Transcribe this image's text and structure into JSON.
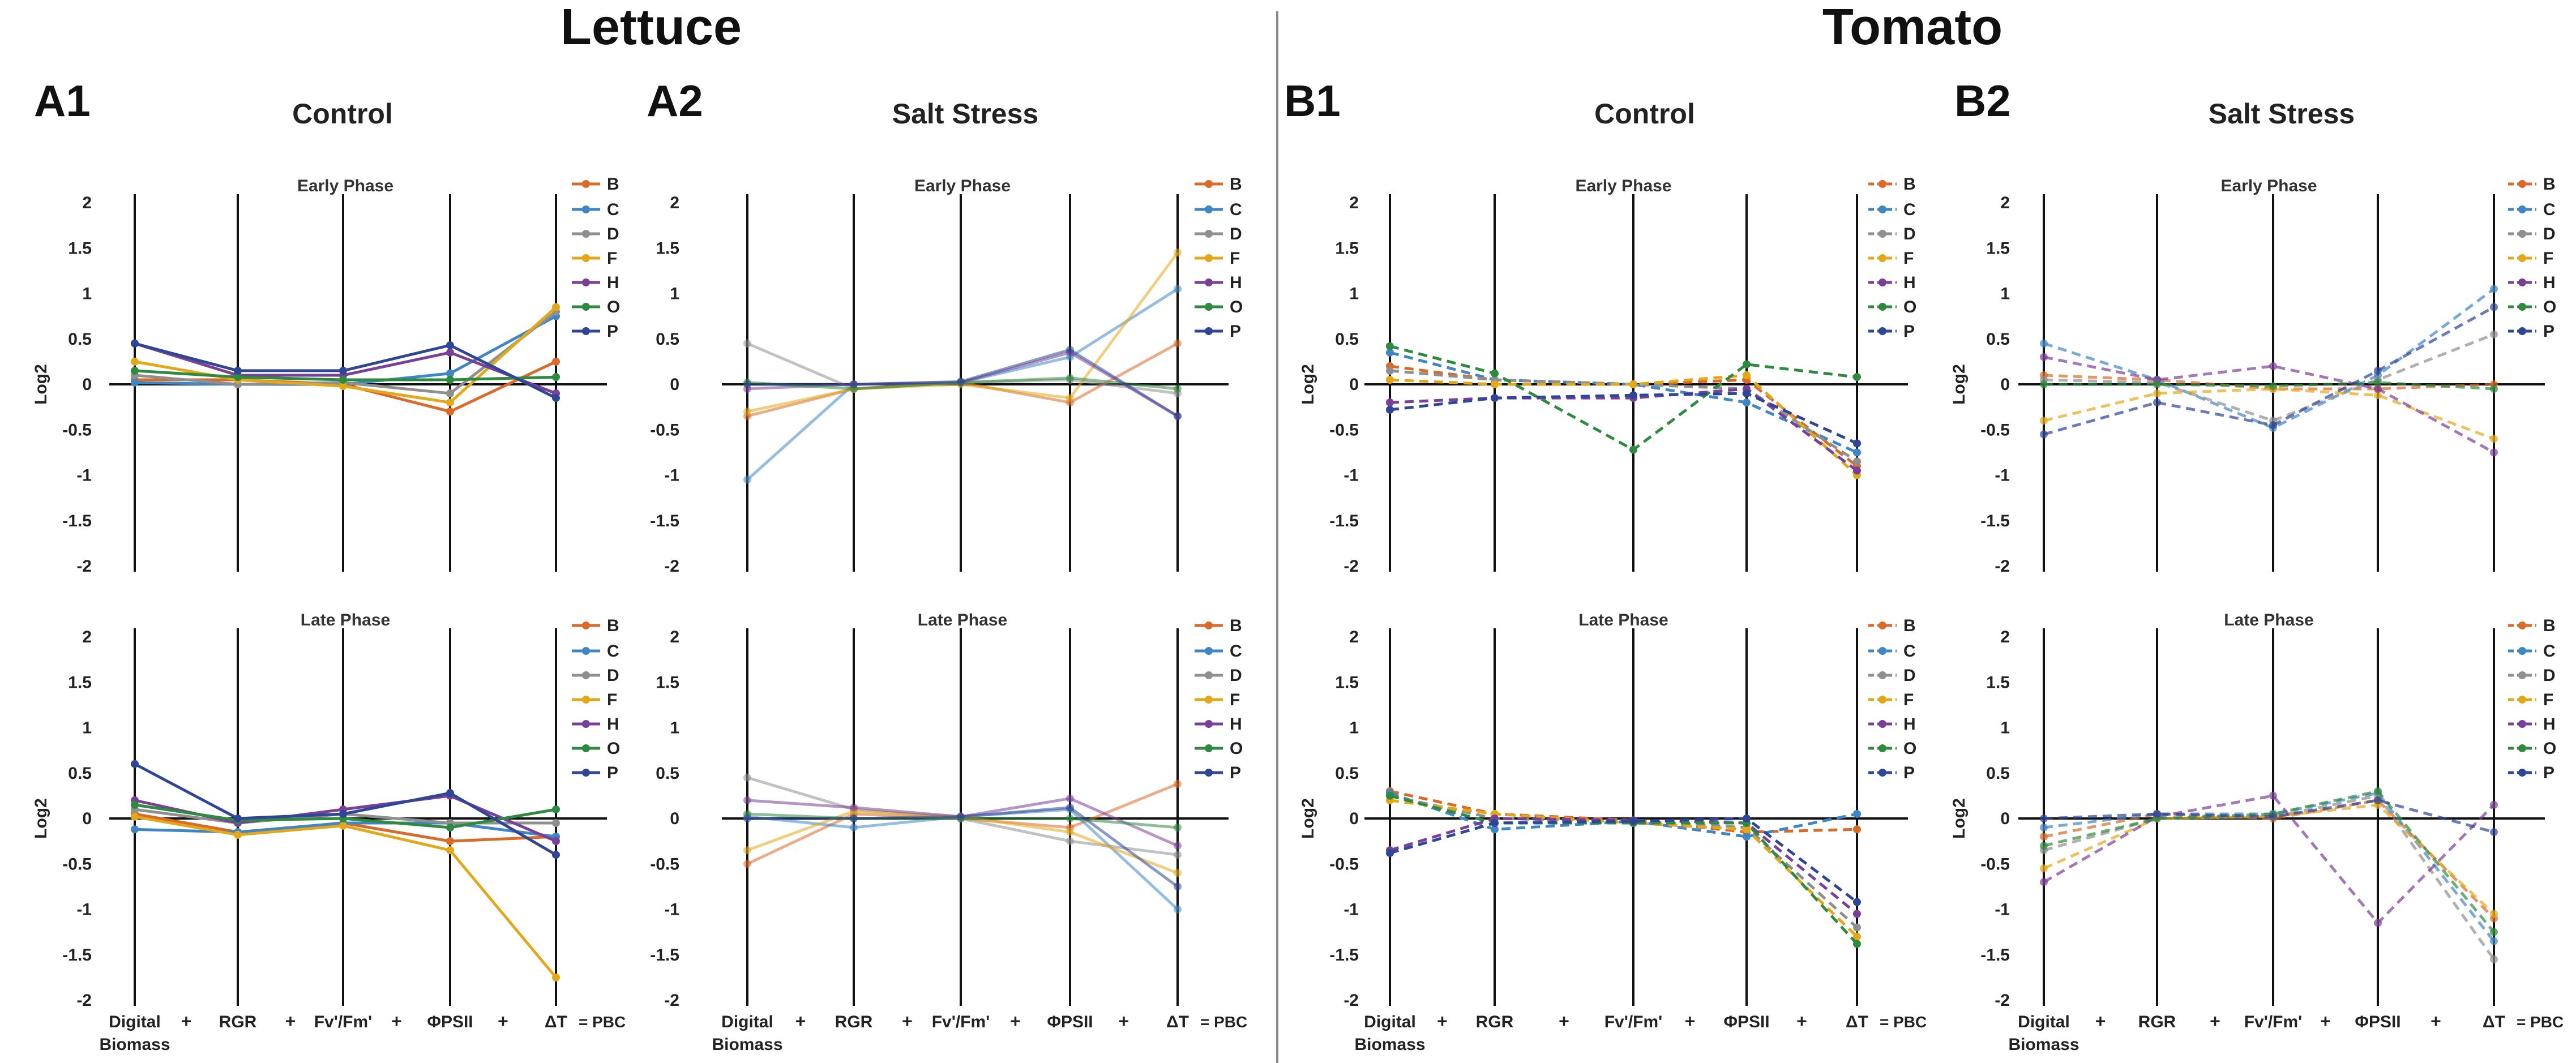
{
  "figure": {
    "crop_names": [
      "Lettuce",
      "Tomato"
    ],
    "pbc_label": "= PBC",
    "plus_symbol": "+",
    "y_axis_label": "Log2"
  },
  "colors": {
    "B": "#D96A27",
    "C": "#3E86C6",
    "D": "#8F8F8F",
    "F": "#E3A81A",
    "H": "#7A3F97",
    "O": "#2D8A3E",
    "P": "#2F4596"
  },
  "chart_data": [
    {
      "type": "line",
      "panel": "A1",
      "crop": "Lettuce",
      "title": "Control",
      "subplot_title": "Early Phase",
      "line_style": "solid",
      "marker_opacity": 1.0,
      "ylabel": "Log2",
      "categories": [
        "Digital Biomass",
        "RGR",
        "Fv'/Fm'",
        "ΦPSII",
        "ΔT"
      ],
      "ylim": [
        -2,
        2
      ],
      "yticks": [
        2,
        1.5,
        1,
        0.5,
        0,
        -0.5,
        -1,
        -1.5,
        -2
      ],
      "series": [
        {
          "name": "B",
          "values": [
            0.05,
            0.05,
            0.0,
            -0.3,
            0.25
          ]
        },
        {
          "name": "C",
          "values": [
            0.02,
            0.0,
            0.0,
            0.12,
            0.75
          ]
        },
        {
          "name": "D",
          "values": [
            0.1,
            0.0,
            0.02,
            -0.1,
            0.8
          ]
        },
        {
          "name": "F",
          "values": [
            0.25,
            0.05,
            -0.02,
            -0.2,
            0.85
          ]
        },
        {
          "name": "H",
          "values": [
            0.45,
            0.1,
            0.1,
            0.35,
            -0.1
          ]
        },
        {
          "name": "O",
          "values": [
            0.15,
            0.08,
            0.05,
            0.05,
            0.08
          ]
        },
        {
          "name": "P",
          "values": [
            0.45,
            0.15,
            0.15,
            0.43,
            -0.15
          ]
        }
      ]
    },
    {
      "type": "line",
      "panel": "A1",
      "crop": "Lettuce",
      "title": "Control",
      "subplot_title": "Late Phase",
      "line_style": "solid",
      "marker_opacity": 1.0,
      "ylabel": "Log2",
      "categories": [
        "Digital Biomass",
        "RGR",
        "Fv'/Fm'",
        "ΦPSII",
        "ΔT"
      ],
      "ylim": [
        -2,
        2
      ],
      "yticks": [
        2,
        1.5,
        1,
        0.5,
        0,
        -0.5,
        -1,
        -1.5,
        -2
      ],
      "series": [
        {
          "name": "B",
          "values": [
            0.05,
            -0.15,
            -0.05,
            -0.25,
            -0.2
          ]
        },
        {
          "name": "C",
          "values": [
            -0.12,
            -0.15,
            -0.05,
            -0.05,
            -0.2
          ]
        },
        {
          "name": "D",
          "values": [
            0.1,
            -0.05,
            0.05,
            -0.05,
            -0.05
          ]
        },
        {
          "name": "F",
          "values": [
            0.02,
            -0.18,
            -0.08,
            -0.35,
            -1.75
          ]
        },
        {
          "name": "H",
          "values": [
            0.2,
            -0.05,
            0.1,
            0.25,
            -0.25
          ]
        },
        {
          "name": "O",
          "values": [
            0.15,
            -0.02,
            0.0,
            -0.1,
            0.1
          ]
        },
        {
          "name": "P",
          "values": [
            0.6,
            0.0,
            0.05,
            0.28,
            -0.4
          ]
        }
      ]
    },
    {
      "type": "line",
      "panel": "A2",
      "crop": "Lettuce",
      "title": "Salt Stress",
      "subplot_title": "Early Phase",
      "line_style": "solid",
      "marker_opacity": 0.55,
      "ylabel": "",
      "categories": [
        "Digital Biomass",
        "RGR",
        "Fv'/Fm'",
        "ΦPSII",
        "ΔT"
      ],
      "ylim": [
        -2,
        2
      ],
      "yticks": [
        2,
        1.5,
        1,
        0.5,
        0,
        -0.5,
        -1,
        -1.5,
        -2
      ],
      "series": [
        {
          "name": "B",
          "values": [
            -0.35,
            -0.05,
            0.02,
            -0.2,
            0.45
          ]
        },
        {
          "name": "C",
          "values": [
            -1.05,
            0.0,
            0.02,
            0.3,
            1.05
          ]
        },
        {
          "name": "D",
          "values": [
            0.45,
            -0.05,
            0.02,
            0.05,
            -0.1
          ]
        },
        {
          "name": "F",
          "values": [
            -0.3,
            -0.05,
            0.0,
            -0.15,
            1.45
          ]
        },
        {
          "name": "H",
          "values": [
            -0.05,
            0.0,
            0.02,
            0.35,
            -0.35
          ]
        },
        {
          "name": "O",
          "values": [
            0.02,
            -0.05,
            0.02,
            0.07,
            -0.05
          ]
        },
        {
          "name": "P",
          "values": [
            0.0,
            0.0,
            0.03,
            0.38,
            -0.35
          ]
        }
      ]
    },
    {
      "type": "line",
      "panel": "A2",
      "crop": "Lettuce",
      "title": "Salt Stress",
      "subplot_title": "Late Phase",
      "line_style": "solid",
      "marker_opacity": 0.55,
      "ylabel": "",
      "categories": [
        "Digital Biomass",
        "RGR",
        "Fv'/Fm'",
        "ΦPSII",
        "ΔT"
      ],
      "ylim": [
        -2,
        2
      ],
      "yticks": [
        2,
        1.5,
        1,
        0.5,
        0,
        -0.5,
        -1,
        -1.5,
        -2
      ],
      "series": [
        {
          "name": "B",
          "values": [
            -0.5,
            0.05,
            0.0,
            -0.1,
            0.38
          ]
        },
        {
          "name": "C",
          "values": [
            0.02,
            -0.1,
            0.02,
            0.1,
            -1.0
          ]
        },
        {
          "name": "D",
          "values": [
            0.45,
            0.1,
            0.0,
            -0.25,
            -0.4
          ]
        },
        {
          "name": "F",
          "values": [
            -0.35,
            0.08,
            0.02,
            -0.15,
            -0.6
          ]
        },
        {
          "name": "H",
          "values": [
            0.2,
            0.12,
            0.02,
            0.22,
            -0.3
          ]
        },
        {
          "name": "O",
          "values": [
            0.05,
            0.0,
            0.0,
            0.0,
            -0.1
          ]
        },
        {
          "name": "P",
          "values": [
            0.0,
            0.0,
            0.02,
            0.12,
            -0.75
          ]
        }
      ]
    },
    {
      "type": "line",
      "panel": "B1",
      "crop": "Tomato",
      "title": "Control",
      "subplot_title": "Early Phase",
      "line_style": "dashed",
      "marker_opacity": 1.0,
      "ylabel": "Log2",
      "categories": [
        "Digital Biomass",
        "RGR",
        "Fv'/Fm'",
        "ΦPSII",
        "ΔT"
      ],
      "ylim": [
        -2,
        2
      ],
      "yticks": [
        2,
        1.5,
        1,
        0.5,
        0,
        -0.5,
        -1,
        -1.5,
        -2
      ],
      "series": [
        {
          "name": "B",
          "values": [
            0.2,
            0.05,
            0.0,
            0.05,
            -0.9
          ]
        },
        {
          "name": "C",
          "values": [
            0.35,
            0.05,
            0.0,
            -0.2,
            -0.75
          ]
        },
        {
          "name": "D",
          "values": [
            0.15,
            0.05,
            0.0,
            -0.05,
            -0.85
          ]
        },
        {
          "name": "F",
          "values": [
            0.05,
            0.0,
            0.0,
            0.1,
            -1.0
          ]
        },
        {
          "name": "H",
          "values": [
            -0.2,
            -0.15,
            -0.15,
            -0.05,
            -0.95
          ]
        },
        {
          "name": "O",
          "values": [
            0.42,
            0.12,
            -0.72,
            0.22,
            0.08
          ]
        },
        {
          "name": "P",
          "values": [
            -0.28,
            -0.15,
            -0.12,
            -0.1,
            -0.65
          ]
        }
      ]
    },
    {
      "type": "line",
      "panel": "B1",
      "crop": "Tomato",
      "title": "Control",
      "subplot_title": "Late Phase",
      "line_style": "dashed",
      "marker_opacity": 1.0,
      "ylabel": "Log2",
      "categories": [
        "Digital Biomass",
        "RGR",
        "Fv'/Fm'",
        "ΦPSII",
        "ΔT"
      ],
      "ylim": [
        -2,
        2
      ],
      "yticks": [
        2,
        1.5,
        1,
        0.5,
        0,
        -0.5,
        -1,
        -1.5,
        -2
      ],
      "series": [
        {
          "name": "B",
          "values": [
            0.3,
            0.05,
            -0.02,
            -0.15,
            -0.12
          ]
        },
        {
          "name": "C",
          "values": [
            0.28,
            -0.12,
            -0.03,
            -0.2,
            0.05
          ]
        },
        {
          "name": "D",
          "values": [
            0.25,
            0.0,
            -0.03,
            -0.1,
            -1.2
          ]
        },
        {
          "name": "F",
          "values": [
            0.2,
            0.05,
            -0.05,
            -0.12,
            -1.3
          ]
        },
        {
          "name": "H",
          "values": [
            -0.35,
            0.0,
            -0.02,
            -0.05,
            -1.05
          ]
        },
        {
          "name": "O",
          "values": [
            0.25,
            -0.05,
            -0.05,
            -0.05,
            -1.38
          ]
        },
        {
          "name": "P",
          "values": [
            -0.38,
            -0.05,
            -0.03,
            0.0,
            -0.92
          ]
        }
      ]
    },
    {
      "type": "line",
      "panel": "B2",
      "crop": "Tomato",
      "title": "Salt Stress",
      "subplot_title": "Early Phase",
      "line_style": "dashed",
      "marker_opacity": 0.7,
      "ylabel": "Log2",
      "categories": [
        "Digital Biomass",
        "RGR",
        "Fv'/Fm'",
        "ΦPSII",
        "ΔT"
      ],
      "ylim": [
        -2,
        2
      ],
      "yticks": [
        2,
        1.5,
        1,
        0.5,
        0,
        -0.5,
        -1,
        -1.5,
        -2
      ],
      "series": [
        {
          "name": "B",
          "values": [
            0.1,
            0.05,
            -0.05,
            -0.05,
            0.0
          ]
        },
        {
          "name": "C",
          "values": [
            0.45,
            0.05,
            -0.48,
            0.1,
            1.05
          ]
        },
        {
          "name": "D",
          "values": [
            0.05,
            0.02,
            -0.4,
            0.05,
            0.55
          ]
        },
        {
          "name": "F",
          "values": [
            -0.4,
            -0.1,
            -0.05,
            -0.12,
            -0.6
          ]
        },
        {
          "name": "H",
          "values": [
            0.3,
            0.05,
            0.2,
            -0.05,
            -0.75
          ]
        },
        {
          "name": "O",
          "values": [
            0.0,
            0.0,
            -0.02,
            0.02,
            -0.05
          ]
        },
        {
          "name": "P",
          "values": [
            -0.55,
            -0.2,
            -0.45,
            0.15,
            0.85
          ]
        }
      ]
    },
    {
      "type": "line",
      "panel": "B2",
      "crop": "Tomato",
      "title": "Salt Stress",
      "subplot_title": "Late Phase",
      "line_style": "dashed",
      "marker_opacity": 0.7,
      "ylabel": "Log2",
      "categories": [
        "Digital Biomass",
        "RGR",
        "Fv'/Fm'",
        "ΦPSII",
        "ΔT"
      ],
      "ylim": [
        -2,
        2
      ],
      "yticks": [
        2,
        1.5,
        1,
        0.5,
        0,
        -0.5,
        -1,
        -1.5,
        -2
      ],
      "series": [
        {
          "name": "B",
          "values": [
            -0.2,
            0.05,
            0.0,
            0.2,
            -1.1
          ]
        },
        {
          "name": "C",
          "values": [
            -0.1,
            0.05,
            0.05,
            0.28,
            -1.35
          ]
        },
        {
          "name": "D",
          "values": [
            -0.35,
            0.0,
            0.02,
            0.25,
            -1.55
          ]
        },
        {
          "name": "F",
          "values": [
            -0.55,
            0.0,
            0.02,
            0.15,
            -1.05
          ]
        },
        {
          "name": "H",
          "values": [
            -0.7,
            0.02,
            0.25,
            -1.15,
            0.15
          ]
        },
        {
          "name": "O",
          "values": [
            -0.3,
            0.0,
            0.05,
            0.3,
            -1.25
          ]
        },
        {
          "name": "P",
          "values": [
            0.0,
            0.05,
            0.02,
            0.2,
            -0.15
          ]
        }
      ]
    }
  ],
  "panels": [
    {
      "label": "A1",
      "title": "Control",
      "has_legend": true
    },
    {
      "label": "A2",
      "title": "Salt Stress",
      "has_legend": true
    },
    {
      "label": "B1",
      "title": "Control",
      "has_legend": true
    },
    {
      "label": "B2",
      "title": "Salt Stress",
      "has_legend": true
    }
  ],
  "x_axis_labels": [
    {
      "line1": "Digital",
      "line2": "Biomass"
    },
    {
      "line1": "RGR",
      "line2": ""
    },
    {
      "line1": "Fv'/Fm'",
      "line2": ""
    },
    {
      "line1": "ΦPSII",
      "line2": ""
    },
    {
      "line1": "ΔT",
      "line2": ""
    }
  ]
}
